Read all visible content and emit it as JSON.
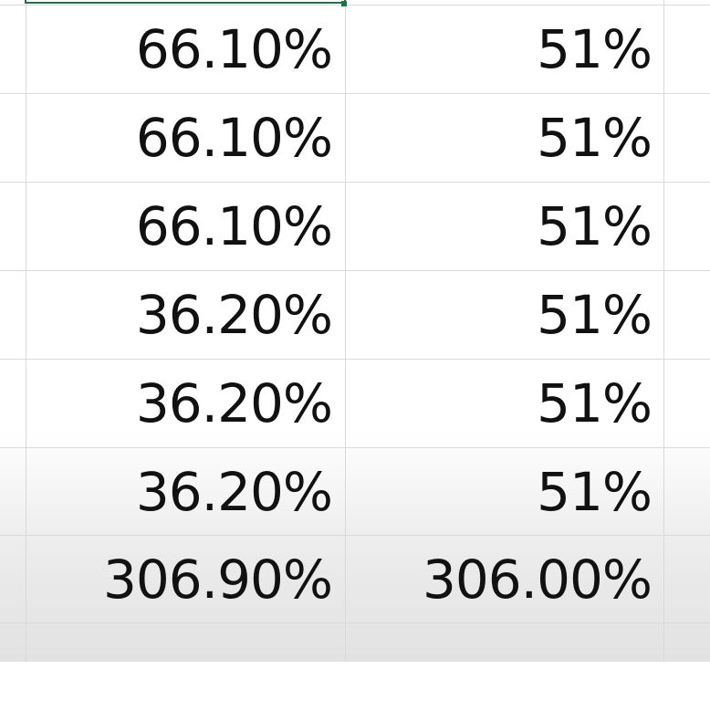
{
  "sheet": {
    "selection_color": "#217346",
    "rows": [
      {
        "col_b": "66.10%",
        "col_c": "51%"
      },
      {
        "col_b": "66.10%",
        "col_c": "51%"
      },
      {
        "col_b": "66.10%",
        "col_c": "51%"
      },
      {
        "col_b": "36.20%",
        "col_c": "51%"
      },
      {
        "col_b": "36.20%",
        "col_c": "51%"
      },
      {
        "col_b": "36.20%",
        "col_c": "51%"
      },
      {
        "col_b": "306.90%",
        "col_c": "306.00%"
      },
      {
        "col_b": "",
        "col_c": ""
      }
    ]
  }
}
